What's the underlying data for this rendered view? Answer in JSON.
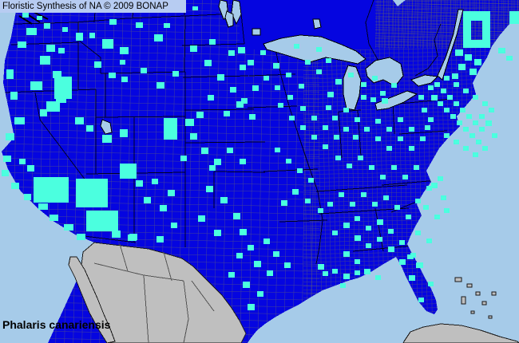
{
  "header": {
    "title": "Floristic Synthesis of NA © 2009 BONAP"
  },
  "footer": {
    "species": "Phalaris canariensis"
  },
  "palette": {
    "header_bg": "#b7ccf2",
    "ocean": "#a6cbe9",
    "lake": "#a6cbe9",
    "land_blue": "#0505e0",
    "county_present_cyan": "#4bffdf",
    "mexico_gray": "#bfbfbf",
    "county_line": "#77775e",
    "state_line": "#000012",
    "text": "#000000"
  },
  "chart_data": {
    "type": "heatmap",
    "title": "Floristic Synthesis of NA © 2009 BONAP",
    "subject": "Phalaris canariensis",
    "legend_colors": {
      "blue_state_fill": "#0505e0",
      "cyan_county_present": "#4bffdf",
      "gray_outside_area": "#bfbfbf",
      "water": "#a6cbe9"
    },
    "cyan_counties": [
      [
        28,
        16,
        8,
        6
      ],
      [
        46,
        20,
        7,
        5
      ],
      [
        146,
        4,
        8,
        6
      ],
      [
        204,
        2,
        8,
        6
      ],
      [
        241,
        8,
        7,
        5
      ],
      [
        33,
        35,
        13,
        9
      ],
      [
        55,
        29,
        8,
        7
      ],
      [
        78,
        34,
        7,
        6
      ],
      [
        95,
        41,
        9,
        10
      ],
      [
        22,
        52,
        11,
        8
      ],
      [
        58,
        56,
        11,
        9
      ],
      [
        137,
        24,
        9,
        7
      ],
      [
        170,
        28,
        9,
        7
      ],
      [
        205,
        29,
        8,
        6
      ],
      [
        193,
        43,
        11,
        9
      ],
      [
        112,
        41,
        7,
        7
      ],
      [
        128,
        49,
        14,
        12
      ],
      [
        150,
        59,
        11,
        9
      ],
      [
        118,
        77,
        9,
        8
      ],
      [
        136,
        91,
        9,
        7
      ],
      [
        150,
        75,
        7,
        6
      ],
      [
        176,
        85,
        8,
        7
      ],
      [
        152,
        96,
        8,
        7
      ],
      [
        196,
        103,
        10,
        8
      ],
      [
        216,
        89,
        8,
        7
      ],
      [
        8,
        87,
        9,
        12
      ],
      [
        13,
        115,
        9,
        10
      ],
      [
        50,
        70,
        13,
        11
      ],
      [
        73,
        60,
        8,
        7
      ],
      [
        66,
        89,
        11,
        9
      ],
      [
        38,
        102,
        15,
        11
      ],
      [
        70,
        117,
        13,
        12
      ],
      [
        50,
        137,
        9,
        9
      ],
      [
        18,
        147,
        13,
        9
      ],
      [
        7,
        167,
        11,
        9
      ],
      [
        68,
        96,
        22,
        28
      ],
      [
        58,
        127,
        17,
        13
      ],
      [
        94,
        147,
        11,
        9
      ],
      [
        108,
        157,
        9,
        8
      ],
      [
        128,
        169,
        12,
        10
      ],
      [
        150,
        162,
        10,
        10
      ],
      [
        150,
        205,
        21,
        19
      ],
      [
        205,
        148,
        17,
        27
      ],
      [
        232,
        149,
        11,
        9
      ],
      [
        246,
        140,
        9,
        8
      ],
      [
        238,
        167,
        9,
        8
      ],
      [
        226,
        195,
        8,
        7
      ],
      [
        4,
        195,
        10,
        8
      ],
      [
        2,
        213,
        9,
        8
      ],
      [
        14,
        229,
        10,
        8
      ],
      [
        30,
        243,
        9,
        8
      ],
      [
        46,
        223,
        9,
        8
      ],
      [
        34,
        207,
        9,
        8
      ],
      [
        48,
        255,
        12,
        8
      ],
      [
        62,
        269,
        11,
        8
      ],
      [
        80,
        281,
        12,
        8
      ],
      [
        96,
        293,
        11,
        8
      ],
      [
        24,
        199,
        8,
        7
      ],
      [
        42,
        222,
        44,
        32
      ],
      [
        95,
        224,
        40,
        36
      ],
      [
        108,
        264,
        40,
        26
      ],
      [
        140,
        289,
        11,
        9
      ],
      [
        160,
        294,
        11,
        8
      ],
      [
        170,
        226,
        9,
        8
      ],
      [
        190,
        224,
        8,
        7
      ],
      [
        210,
        238,
        9,
        8
      ],
      [
        180,
        247,
        9,
        8
      ],
      [
        200,
        257,
        9,
        8
      ],
      [
        162,
        293,
        10,
        8
      ],
      [
        196,
        296,
        9,
        8
      ],
      [
        214,
        279,
        8,
        7
      ],
      [
        238,
        57,
        9,
        8
      ],
      [
        256,
        75,
        9,
        8
      ],
      [
        262,
        49,
        8,
        7
      ],
      [
        286,
        63,
        8,
        7
      ],
      [
        272,
        93,
        9,
        8
      ],
      [
        288,
        109,
        8,
        7
      ],
      [
        300,
        81,
        8,
        7
      ],
      [
        296,
        127,
        9,
        8
      ],
      [
        312,
        143,
        8,
        7
      ],
      [
        260,
        119,
        8,
        7
      ],
      [
        280,
        139,
        8,
        7
      ],
      [
        298,
        59,
        9,
        8
      ],
      [
        310,
        75,
        8,
        7
      ],
      [
        326,
        63,
        7,
        6
      ],
      [
        342,
        79,
        8,
        7
      ],
      [
        316,
        107,
        8,
        7
      ],
      [
        302,
        123,
        8,
        7
      ],
      [
        252,
        185,
        9,
        8
      ],
      [
        268,
        199,
        9,
        8
      ],
      [
        284,
        185,
        8,
        7
      ],
      [
        300,
        199,
        8,
        7
      ],
      [
        262,
        207,
        8,
        7
      ],
      [
        258,
        233,
        9,
        8
      ],
      [
        276,
        247,
        9,
        8
      ],
      [
        292,
        267,
        9,
        8
      ],
      [
        248,
        270,
        9,
        8
      ],
      [
        268,
        288,
        9,
        8
      ],
      [
        300,
        287,
        9,
        8
      ],
      [
        310,
        307,
        8,
        7
      ],
      [
        296,
        317,
        8,
        7
      ],
      [
        318,
        327,
        9,
        8
      ],
      [
        286,
        341,
        8,
        7
      ],
      [
        304,
        353,
        9,
        8
      ],
      [
        322,
        365,
        8,
        7
      ],
      [
        310,
        381,
        9,
        8
      ],
      [
        330,
        299,
        8,
        7
      ],
      [
        342,
        315,
        8,
        7
      ],
      [
        334,
        339,
        8,
        7
      ],
      [
        356,
        329,
        8,
        7
      ],
      [
        330,
        95,
        7,
        6
      ],
      [
        344,
        107,
        7,
        6
      ],
      [
        360,
        119,
        7,
        6
      ],
      [
        374,
        105,
        7,
        6
      ],
      [
        348,
        129,
        7,
        6
      ],
      [
        362,
        145,
        7,
        6
      ],
      [
        376,
        133,
        7,
        6
      ],
      [
        390,
        145,
        7,
        6
      ],
      [
        376,
        157,
        7,
        6
      ],
      [
        390,
        169,
        7,
        6
      ],
      [
        404,
        157,
        7,
        6
      ],
      [
        404,
        181,
        7,
        6
      ],
      [
        418,
        169,
        7,
        6
      ],
      [
        416,
        145,
        7,
        6
      ],
      [
        382,
        75,
        7,
        6
      ],
      [
        396,
        87,
        7,
        6
      ],
      [
        408,
        73,
        7,
        6
      ],
      [
        396,
        59,
        7,
        6
      ],
      [
        368,
        55,
        7,
        6
      ],
      [
        358,
        91,
        7,
        6
      ],
      [
        344,
        185,
        7,
        6
      ],
      [
        358,
        199,
        7,
        6
      ],
      [
        372,
        211,
        7,
        6
      ],
      [
        386,
        223,
        7,
        6
      ],
      [
        366,
        237,
        8,
        7
      ],
      [
        382,
        249,
        7,
        6
      ],
      [
        398,
        261,
        7,
        6
      ],
      [
        352,
        251,
        8,
        7
      ],
      [
        398,
        331,
        8,
        7
      ],
      [
        404,
        340,
        7,
        6
      ],
      [
        416,
        337,
        7,
        6
      ],
      [
        430,
        343,
        8,
        7
      ],
      [
        444,
        339,
        7,
        6
      ],
      [
        456,
        337,
        8,
        7
      ],
      [
        470,
        345,
        7,
        6
      ],
      [
        430,
        159,
        7,
        6
      ],
      [
        430,
        135,
        7,
        6
      ],
      [
        444,
        147,
        7,
        6
      ],
      [
        442,
        169,
        7,
        6
      ],
      [
        456,
        159,
        7,
        6
      ],
      [
        470,
        149,
        7,
        6
      ],
      [
        484,
        159,
        7,
        6
      ],
      [
        470,
        171,
        7,
        6
      ],
      [
        484,
        183,
        7,
        6
      ],
      [
        498,
        171,
        7,
        6
      ],
      [
        498,
        147,
        7,
        6
      ],
      [
        512,
        159,
        7,
        6
      ],
      [
        512,
        183,
        7,
        6
      ],
      [
        526,
        171,
        7,
        6
      ],
      [
        420,
        195,
        7,
        6
      ],
      [
        434,
        205,
        7,
        6
      ],
      [
        448,
        195,
        7,
        6
      ],
      [
        462,
        207,
        7,
        6
      ],
      [
        476,
        219,
        7,
        6
      ],
      [
        490,
        207,
        7,
        6
      ],
      [
        504,
        219,
        7,
        6
      ],
      [
        518,
        207,
        7,
        6
      ],
      [
        420,
        99,
        8,
        7
      ],
      [
        436,
        91,
        7,
        6
      ],
      [
        452,
        103,
        7,
        6
      ],
      [
        466,
        95,
        7,
        6
      ],
      [
        452,
        119,
        7,
        6
      ],
      [
        478,
        123,
        8,
        7
      ],
      [
        410,
        115,
        8,
        7
      ],
      [
        408,
        132,
        7,
        6
      ],
      [
        476,
        114,
        7,
        6
      ],
      [
        490,
        104,
        7,
        6
      ],
      [
        464,
        122,
        7,
        6
      ],
      [
        540,
        119,
        8,
        7
      ],
      [
        552,
        111,
        7,
        6
      ],
      [
        548,
        127,
        7,
        6
      ],
      [
        560,
        119,
        7,
        6
      ],
      [
        556,
        135,
        7,
        6
      ],
      [
        568,
        127,
        7,
        6
      ],
      [
        564,
        143,
        7,
        6
      ],
      [
        576,
        135,
        7,
        6
      ],
      [
        572,
        151,
        7,
        6
      ],
      [
        584,
        143,
        7,
        6
      ],
      [
        580,
        159,
        7,
        6
      ],
      [
        592,
        151,
        7,
        6
      ],
      [
        588,
        167,
        7,
        6
      ],
      [
        600,
        159,
        7,
        6
      ],
      [
        596,
        175,
        7,
        6
      ],
      [
        544,
        103,
        7,
        6
      ],
      [
        556,
        95,
        7,
        6
      ],
      [
        568,
        103,
        7,
        6
      ],
      [
        580,
        111,
        7,
        6
      ],
      [
        592,
        119,
        7,
        6
      ],
      [
        604,
        127,
        7,
        6
      ],
      [
        600,
        143,
        7,
        6
      ],
      [
        612,
        135,
        7,
        6
      ],
      [
        608,
        151,
        8,
        7
      ],
      [
        616,
        167,
        7,
        6
      ],
      [
        604,
        183,
        7,
        6
      ],
      [
        592,
        191,
        7,
        6
      ],
      [
        580,
        183,
        7,
        6
      ],
      [
        568,
        175,
        7,
        6
      ],
      [
        556,
        167,
        7,
        6
      ],
      [
        536,
        147,
        7,
        6
      ],
      [
        528,
        135,
        7,
        6
      ],
      [
        524,
        119,
        7,
        6
      ],
      [
        536,
        107,
        7,
        6
      ],
      [
        532,
        157,
        7,
        6
      ],
      [
        580,
        14,
        34,
        12
      ],
      [
        580,
        26,
        10,
        24
      ],
      [
        604,
        26,
        10,
        24
      ],
      [
        580,
        50,
        34,
        10
      ],
      [
        570,
        62,
        10,
        8
      ],
      [
        582,
        68,
        9,
        8
      ],
      [
        594,
        74,
        9,
        8
      ],
      [
        574,
        80,
        9,
        8
      ],
      [
        588,
        86,
        9,
        8
      ],
      [
        566,
        92,
        8,
        7
      ],
      [
        638,
        14,
        12,
        16
      ],
      [
        624,
        60,
        9,
        7
      ],
      [
        634,
        70,
        8,
        6
      ],
      [
        540,
        229,
        8,
        7
      ],
      [
        552,
        245,
        7,
        6
      ],
      [
        530,
        257,
        7,
        6
      ],
      [
        544,
        269,
        7,
        6
      ],
      [
        556,
        261,
        7,
        6
      ],
      [
        520,
        249,
        7,
        6
      ],
      [
        534,
        233,
        7,
        6
      ],
      [
        548,
        221,
        7,
        6
      ],
      [
        430,
        279,
        8,
        7
      ],
      [
        444,
        271,
        7,
        6
      ],
      [
        458,
        283,
        7,
        6
      ],
      [
        472,
        275,
        8,
        7
      ],
      [
        486,
        287,
        7,
        6
      ],
      [
        444,
        295,
        8,
        7
      ],
      [
        458,
        305,
        7,
        6
      ],
      [
        472,
        297,
        7,
        6
      ],
      [
        486,
        309,
        8,
        7
      ],
      [
        500,
        301,
        7,
        6
      ],
      [
        430,
        315,
        8,
        7
      ],
      [
        444,
        325,
        7,
        6
      ],
      [
        500,
        325,
        8,
        7
      ],
      [
        514,
        317,
        7,
        6
      ],
      [
        416,
        289,
        7,
        6
      ],
      [
        520,
        289,
        7,
        6
      ],
      [
        534,
        299,
        7,
        6
      ],
      [
        410,
        253,
        7,
        6
      ],
      [
        424,
        241,
        7,
        6
      ],
      [
        438,
        253,
        7,
        6
      ],
      [
        452,
        241,
        7,
        6
      ],
      [
        466,
        253,
        7,
        6
      ],
      [
        480,
        245,
        7,
        6
      ],
      [
        494,
        257,
        7,
        6
      ],
      [
        508,
        269,
        7,
        6
      ],
      [
        510,
        319,
        8,
        6
      ],
      [
        521,
        329,
        9,
        7
      ],
      [
        512,
        345,
        8,
        7
      ],
      [
        536,
        353,
        7,
        6
      ],
      [
        524,
        373,
        7,
        6
      ],
      [
        426,
        355,
        7,
        6
      ]
    ]
  }
}
